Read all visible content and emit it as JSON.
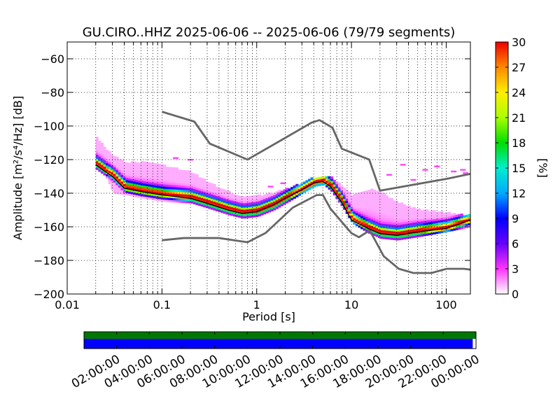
{
  "chart_data": {
    "type": "heatmap",
    "title": "GU.CIRO..HHZ   2025-06-06 -- 2025-06-06  (79/79 segments)",
    "xlabel": "Period [s]",
    "ylabel": "Amplitude [m²/s⁴/Hz] [dB]",
    "x_scale": "log",
    "xlim": [
      0.01,
      180
    ],
    "ylim": [
      -200,
      -50
    ],
    "x_ticks": [
      0.01,
      0.1,
      1,
      10,
      100
    ],
    "x_tick_labels": [
      "0.01",
      "0.1",
      "1",
      "10",
      "100"
    ],
    "y_ticks": [
      -200,
      -180,
      -160,
      -140,
      -120,
      -100,
      -80,
      -60
    ],
    "y_tick_labels": [
      "−200",
      "−180",
      "−160",
      "−140",
      "−120",
      "−100",
      "−80",
      "−60"
    ],
    "grid": true,
    "colorbar": {
      "label": "[%]",
      "range": [
        0,
        30
      ],
      "ticks": [
        0,
        3,
        6,
        9,
        12,
        15,
        18,
        21,
        24,
        27,
        30
      ],
      "tick_labels": [
        "0",
        "3",
        "6",
        "9",
        "12",
        "15",
        "18",
        "21",
        "24",
        "27",
        "30"
      ]
    },
    "series": [
      {
        "role": "high-noise-model",
        "x": [
          0.1,
          0.22,
          0.32,
          0.8,
          3.8,
          4.6,
          6.3,
          7.9,
          15.4,
          20,
          100,
          180
        ],
        "y": [
          -91.5,
          -97.4,
          -110.5,
          -120,
          -98,
          -96.5,
          -101,
          -113.5,
          -120,
          -138.5,
          -131.5,
          -128.5
        ]
      },
      {
        "role": "low-noise-model",
        "x": [
          0.1,
          0.17,
          0.4,
          0.8,
          1.24,
          2.4,
          4.3,
          5,
          6,
          10,
          12,
          15.6,
          21.9,
          31.6,
          45,
          70,
          101,
          154,
          180
        ],
        "y": [
          -168,
          -166.7,
          -166.7,
          -169.2,
          -163.7,
          -148.6,
          -141.1,
          -141.1,
          -149.2,
          -163.8,
          -166.2,
          -162.1,
          -177.5,
          -185,
          -187.5,
          -187.5,
          -185,
          -185,
          -185.5
        ]
      },
      {
        "role": "mode",
        "x": [
          0.02,
          0.025,
          0.03,
          0.04,
          0.06,
          0.1,
          0.2,
          0.3,
          0.5,
          0.7,
          1,
          1.5,
          2,
          3,
          4,
          5,
          6,
          8,
          10,
          15,
          20,
          30,
          50,
          100,
          180
        ],
        "y": [
          -123,
          -127,
          -130,
          -137,
          -139,
          -141,
          -143,
          -146,
          -150,
          -152,
          -151,
          -147,
          -143,
          -138,
          -134,
          -133,
          -136,
          -146,
          -156,
          -161,
          -164,
          -165,
          -163,
          -161,
          -156
        ]
      }
    ],
    "mode_band": {
      "x": [
        0.02,
        0.025,
        0.03,
        0.04,
        0.06,
        0.1,
        0.2,
        0.3,
        0.5,
        0.7,
        1,
        1.5,
        2,
        3,
        4,
        5,
        6,
        8,
        10,
        15,
        20,
        30,
        50,
        100,
        180
      ],
      "upper": [
        -107,
        -114,
        -118,
        -122,
        -122,
        -124,
        -128,
        -134,
        -140,
        -143,
        -142,
        -140,
        -138,
        -134,
        -131,
        -130,
        -131,
        -137,
        -142,
        -138,
        -140,
        -146,
        -150,
        -152,
        -154
      ],
      "lower": [
        -126,
        -130,
        -140,
        -141,
        -143,
        -145,
        -146,
        -149,
        -153,
        -155,
        -154,
        -150,
        -146,
        -140,
        -136,
        -135,
        -139,
        -149,
        -158,
        -164,
        -167,
        -168,
        -166,
        -163,
        -160
      ]
    },
    "outliers": [
      {
        "x": 35,
        "y": -123
      },
      {
        "x": 60,
        "y": -126
      },
      {
        "x": 80,
        "y": -124
      },
      {
        "x": 120,
        "y": -127
      },
      {
        "x": 150,
        "y": -126
      },
      {
        "x": 160,
        "y": -128
      },
      {
        "x": 25,
        "y": -129
      },
      {
        "x": 45,
        "y": -132
      },
      {
        "x": 0.14,
        "y": -119
      },
      {
        "x": 0.2,
        "y": -120
      },
      {
        "x": 1.4,
        "y": -136
      },
      {
        "x": 1.9,
        "y": -134
      }
    ],
    "time_axis": {
      "tick_labels": [
        "02:00:00",
        "04:00:00",
        "06:00:00",
        "08:00:00",
        "10:00:00",
        "12:00:00",
        "14:00:00",
        "16:00:00",
        "18:00:00",
        "20:00:00",
        "22:00:00",
        "00:00:00"
      ],
      "tick_hours": [
        2,
        4,
        6,
        8,
        10,
        12,
        14,
        16,
        18,
        20,
        22,
        24
      ],
      "span_hours": 24,
      "data_coverage_hours": [
        0,
        24
      ],
      "psd_coverage_hours": [
        0,
        23.8
      ],
      "data_color": "#007700",
      "psd_color": "#0000ff"
    }
  }
}
